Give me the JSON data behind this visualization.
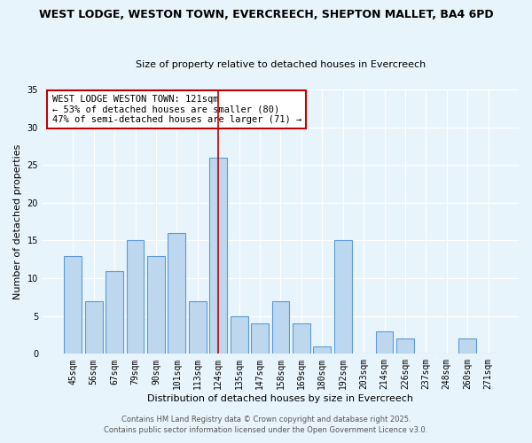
{
  "title": "WEST LODGE, WESTON TOWN, EVERCREECH, SHEPTON MALLET, BA4 6PD",
  "subtitle": "Size of property relative to detached houses in Evercreech",
  "xlabel": "Distribution of detached houses by size in Evercreech",
  "ylabel": "Number of detached properties",
  "bar_labels": [
    "45sqm",
    "56sqm",
    "67sqm",
    "79sqm",
    "90sqm",
    "101sqm",
    "113sqm",
    "124sqm",
    "135sqm",
    "147sqm",
    "158sqm",
    "169sqm",
    "180sqm",
    "192sqm",
    "203sqm",
    "214sqm",
    "226sqm",
    "237sqm",
    "248sqm",
    "260sqm",
    "271sqm"
  ],
  "bar_values": [
    13,
    7,
    11,
    15,
    13,
    16,
    7,
    26,
    5,
    4,
    7,
    4,
    1,
    15,
    0,
    3,
    2,
    0,
    0,
    2,
    0
  ],
  "bar_color": "#bdd7ee",
  "bar_edge_color": "#5b9bd5",
  "vline_color": "#c00000",
  "annotation_box_text": "WEST LODGE WESTON TOWN: 121sqm\n← 53% of detached houses are smaller (80)\n47% of semi-detached houses are larger (71) →",
  "annotation_box_color": "white",
  "annotation_box_edge_color": "#c00000",
  "ylim": [
    0,
    35
  ],
  "yticks": [
    0,
    5,
    10,
    15,
    20,
    25,
    30,
    35
  ],
  "footer1": "Contains HM Land Registry data © Crown copyright and database right 2025.",
  "footer2": "Contains public sector information licensed under the Open Government Licence v3.0.",
  "bg_color": "#e8f4fc",
  "plot_bg_color": "#e8f4fc",
  "grid_color": "white",
  "title_fontsize": 9,
  "subtitle_fontsize": 8,
  "axis_label_fontsize": 8,
  "tick_fontsize": 7,
  "annotation_fontsize": 7.5,
  "footer_fontsize": 6
}
